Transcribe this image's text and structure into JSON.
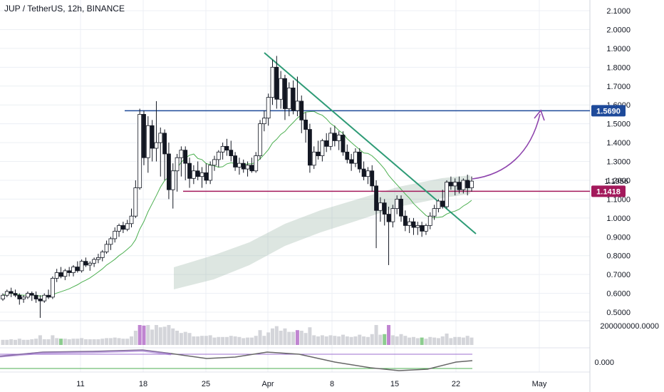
{
  "header": {
    "title": "JUP / TetherUS, 12h, BINANCE"
  },
  "price_axis": {
    "ticks": [
      "2.1000",
      "2.0000",
      "1.9000",
      "1.8000",
      "1.7000",
      "1.6000",
      "1.5000",
      "1.4000",
      "1.3000",
      "1.2000",
      "1.1000",
      "1.0000",
      "0.9000",
      "0.8000",
      "0.7000",
      "0.6000",
      "0.5000"
    ],
    "current_price_label": "1.1956",
    "levels": [
      {
        "label": "1.5690",
        "value": 1.569,
        "color": "#1e4a9a"
      },
      {
        "label": "1.1418",
        "value": 1.1418,
        "color": "#a3195b"
      }
    ]
  },
  "volume_axis": {
    "label": "200000000.0000"
  },
  "oscillator_axis": {
    "label": "0.000"
  },
  "time_axis": {
    "labels": [
      "11",
      "18",
      "25",
      "Apr",
      "8",
      "15",
      "22",
      "May"
    ]
  },
  "colors": {
    "grid": "#eceff4",
    "candle_up": "#ffffff",
    "candle_down": "#131722",
    "trendline": "#2e9b76",
    "resistance": "#1e4a9a",
    "support": "#a3195b",
    "projection_arrow": "#8e44ad",
    "ma": "#4caf50",
    "band": "#9db8a8",
    "volume": "#c9cbd1",
    "volume_highlight_green": "#6fbf73",
    "volume_highlight_purple": "#b066c6",
    "oscillator_line": "#666",
    "oscillator_band": "#9c6fcf"
  },
  "chart_data": {
    "type": "candlestick",
    "symbol": "JUP / TetherUS",
    "interval": "12h",
    "exchange": "BINANCE",
    "ylim": [
      0.45,
      2.15
    ],
    "x_labels": [
      "11",
      "18",
      "25",
      "Apr",
      "8",
      "15",
      "22",
      "May"
    ],
    "candles": [
      [
        0.57,
        0.6,
        0.56,
        0.59
      ],
      [
        0.59,
        0.62,
        0.58,
        0.61
      ],
      [
        0.61,
        0.63,
        0.58,
        0.6
      ],
      [
        0.6,
        0.62,
        0.58,
        0.59
      ],
      [
        0.59,
        0.6,
        0.54,
        0.57
      ],
      [
        0.57,
        0.59,
        0.55,
        0.58
      ],
      [
        0.58,
        0.61,
        0.57,
        0.6
      ],
      [
        0.6,
        0.61,
        0.56,
        0.59
      ],
      [
        0.59,
        0.61,
        0.55,
        0.57
      ],
      [
        0.57,
        0.59,
        0.47,
        0.56
      ],
      [
        0.56,
        0.6,
        0.55,
        0.59
      ],
      [
        0.59,
        0.62,
        0.57,
        0.58
      ],
      [
        0.58,
        0.69,
        0.57,
        0.68
      ],
      [
        0.68,
        0.73,
        0.66,
        0.71
      ],
      [
        0.71,
        0.74,
        0.68,
        0.69
      ],
      [
        0.69,
        0.73,
        0.67,
        0.72
      ],
      [
        0.72,
        0.74,
        0.69,
        0.71
      ],
      [
        0.71,
        0.75,
        0.69,
        0.74
      ],
      [
        0.74,
        0.77,
        0.71,
        0.72
      ],
      [
        0.72,
        0.78,
        0.71,
        0.77
      ],
      [
        0.77,
        0.79,
        0.74,
        0.75
      ],
      [
        0.75,
        0.77,
        0.72,
        0.76
      ],
      [
        0.76,
        0.79,
        0.74,
        0.78
      ],
      [
        0.78,
        0.81,
        0.76,
        0.79
      ],
      [
        0.79,
        0.83,
        0.77,
        0.82
      ],
      [
        0.82,
        0.88,
        0.81,
        0.86
      ],
      [
        0.86,
        0.9,
        0.83,
        0.89
      ],
      [
        0.89,
        0.95,
        0.87,
        0.93
      ],
      [
        0.93,
        0.97,
        0.9,
        0.96
      ],
      [
        0.96,
        0.98,
        0.92,
        0.94
      ],
      [
        0.94,
        0.99,
        0.93,
        0.97
      ],
      [
        0.97,
        1.05,
        0.95,
        1.01
      ],
      [
        1.01,
        1.2,
        1.0,
        1.16
      ],
      [
        1.16,
        1.58,
        1.15,
        1.55
      ],
      [
        1.55,
        1.57,
        1.28,
        1.32
      ],
      [
        1.32,
        1.54,
        1.24,
        1.49
      ],
      [
        1.49,
        1.52,
        1.3,
        1.37
      ],
      [
        1.37,
        1.62,
        1.3,
        1.4
      ],
      [
        1.4,
        1.48,
        1.22,
        1.45
      ],
      [
        1.45,
        1.47,
        1.2,
        1.34
      ],
      [
        1.34,
        1.4,
        1.1,
        1.15
      ],
      [
        1.15,
        1.29,
        1.05,
        1.25
      ],
      [
        1.25,
        1.34,
        1.14,
        1.32
      ],
      [
        1.32,
        1.38,
        1.22,
        1.36
      ],
      [
        1.36,
        1.38,
        1.2,
        1.29
      ],
      [
        1.29,
        1.32,
        1.16,
        1.21
      ],
      [
        1.21,
        1.28,
        1.18,
        1.25
      ],
      [
        1.25,
        1.3,
        1.2,
        1.22
      ],
      [
        1.22,
        1.27,
        1.16,
        1.24
      ],
      [
        1.24,
        1.29,
        1.18,
        1.2
      ],
      [
        1.2,
        1.3,
        1.18,
        1.28
      ],
      [
        1.28,
        1.33,
        1.25,
        1.31
      ],
      [
        1.31,
        1.36,
        1.27,
        1.35
      ],
      [
        1.35,
        1.4,
        1.31,
        1.38
      ],
      [
        1.38,
        1.42,
        1.33,
        1.36
      ],
      [
        1.36,
        1.41,
        1.3,
        1.33
      ],
      [
        1.33,
        1.35,
        1.25,
        1.27
      ],
      [
        1.27,
        1.32,
        1.23,
        1.29
      ],
      [
        1.29,
        1.31,
        1.24,
        1.26
      ],
      [
        1.26,
        1.3,
        1.22,
        1.28
      ],
      [
        1.28,
        1.32,
        1.24,
        1.25
      ],
      [
        1.25,
        1.35,
        1.24,
        1.33
      ],
      [
        1.33,
        1.52,
        1.31,
        1.5
      ],
      [
        1.5,
        1.57,
        1.46,
        1.53
      ],
      [
        1.53,
        1.66,
        1.49,
        1.64
      ],
      [
        1.64,
        1.84,
        1.6,
        1.8
      ],
      [
        1.8,
        1.86,
        1.58,
        1.63
      ],
      [
        1.63,
        1.78,
        1.58,
        1.74
      ],
      [
        1.74,
        1.76,
        1.52,
        1.58
      ],
      [
        1.58,
        1.72,
        1.54,
        1.69
      ],
      [
        1.69,
        1.73,
        1.55,
        1.57
      ],
      [
        1.57,
        1.75,
        1.54,
        1.62
      ],
      [
        1.62,
        1.65,
        1.45,
        1.52
      ],
      [
        1.52,
        1.56,
        1.4,
        1.47
      ],
      [
        1.47,
        1.5,
        1.24,
        1.28
      ],
      [
        1.28,
        1.38,
        1.26,
        1.35
      ],
      [
        1.35,
        1.41,
        1.31,
        1.33
      ],
      [
        1.33,
        1.42,
        1.3,
        1.41
      ],
      [
        1.41,
        1.45,
        1.35,
        1.38
      ],
      [
        1.38,
        1.48,
        1.36,
        1.45
      ],
      [
        1.45,
        1.49,
        1.38,
        1.41
      ],
      [
        1.41,
        1.46,
        1.36,
        1.44
      ],
      [
        1.44,
        1.46,
        1.33,
        1.35
      ],
      [
        1.35,
        1.39,
        1.29,
        1.31
      ],
      [
        1.31,
        1.34,
        1.25,
        1.29
      ],
      [
        1.29,
        1.37,
        1.27,
        1.35
      ],
      [
        1.35,
        1.37,
        1.24,
        1.26
      ],
      [
        1.26,
        1.3,
        1.2,
        1.22
      ],
      [
        1.22,
        1.27,
        1.18,
        1.25
      ],
      [
        1.25,
        1.28,
        1.14,
        1.17
      ],
      [
        1.17,
        1.2,
        0.84,
        1.04
      ],
      [
        1.04,
        1.11,
        0.98,
        1.08
      ],
      [
        1.08,
        1.1,
        0.96,
        1.02
      ],
      [
        1.02,
        1.06,
        0.75,
        0.98
      ],
      [
        0.98,
        1.07,
        0.95,
        1.05
      ],
      [
        1.05,
        1.12,
        1.02,
        1.1
      ],
      [
        1.1,
        1.12,
        0.98,
        1.01
      ],
      [
        1.01,
        1.04,
        0.93,
        0.96
      ],
      [
        0.96,
        1.0,
        0.92,
        0.98
      ],
      [
        0.98,
        1.0,
        0.91,
        0.95
      ],
      [
        0.95,
        0.98,
        0.91,
        0.96
      ],
      [
        0.96,
        0.98,
        0.9,
        0.93
      ],
      [
        0.93,
        0.97,
        0.91,
        0.96
      ],
      [
        0.96,
        1.03,
        0.94,
        1.01
      ],
      [
        1.01,
        1.07,
        0.99,
        1.05
      ],
      [
        1.05,
        1.1,
        1.03,
        1.09
      ],
      [
        1.09,
        1.15,
        1.05,
        1.06
      ],
      [
        1.06,
        1.2,
        1.05,
        1.19
      ],
      [
        1.19,
        1.22,
        1.15,
        1.17
      ],
      [
        1.17,
        1.21,
        1.12,
        1.19
      ],
      [
        1.19,
        1.22,
        1.13,
        1.15
      ],
      [
        1.15,
        1.21,
        1.13,
        1.2
      ],
      [
        1.2,
        1.23,
        1.12,
        1.16
      ],
      [
        1.16,
        1.22,
        1.14,
        1.1956
      ]
    ],
    "resistance_level": 1.569,
    "support_level": 1.1418,
    "current_price": 1.1956,
    "oscillator_zero": 0.0,
    "volume_axis_label_value": 200000000
  }
}
